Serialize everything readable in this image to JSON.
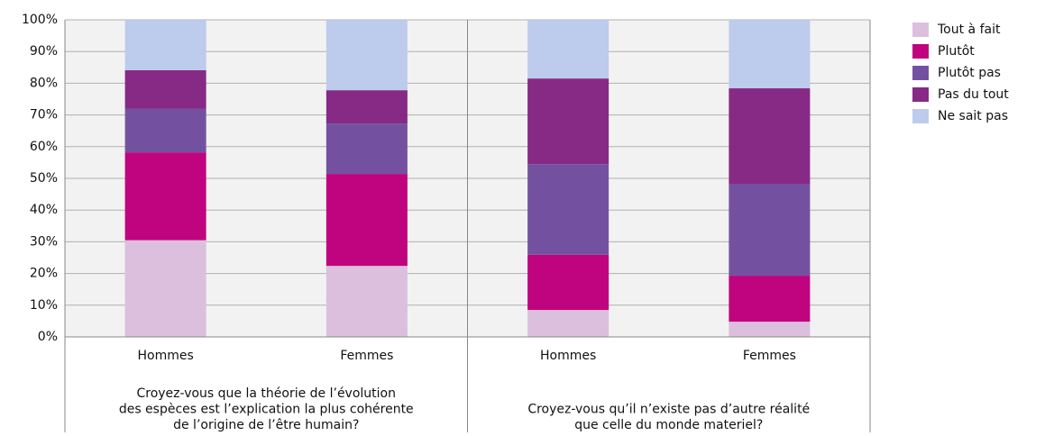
{
  "chart_data": {
    "type": "stacked_bar",
    "categories": [
      "Hommes",
      "Femmes",
      "Hommes",
      "Femmes"
    ],
    "groups": [
      {
        "lines": [
          "Croyez-vous que la théorie de l’évolution",
          "des espèces est l’explication la plus cohérente",
          "de l’origine de l’être humain?"
        ]
      },
      {
        "lines": [
          "Croyez-vous qu’il n’existe pas d’autre réalité",
          "que celle du monde materiel?"
        ]
      }
    ],
    "series": [
      {
        "name": "Tout à fait",
        "color": "#dcbfdd",
        "values": [
          30.5,
          22.4,
          8.5,
          4.8
        ]
      },
      {
        "name": "Plutôt",
        "color": "#c0037e",
        "values": [
          27.7,
          29.0,
          17.4,
          14.5
        ]
      },
      {
        "name": "Plutôt pas",
        "color": "#7451a0",
        "values": [
          13.7,
          15.9,
          28.6,
          29.0
        ]
      },
      {
        "name": "Pas du tout",
        "color": "#862a86",
        "values": [
          12.2,
          10.5,
          27.0,
          30.1
        ]
      },
      {
        "name": "Ne sait pas",
        "color": "#bdcbec",
        "values": [
          15.9,
          22.2,
          18.5,
          21.6
        ]
      }
    ],
    "ylim": [
      0,
      100
    ],
    "yticks": [
      {
        "value": 0,
        "label": "0%"
      },
      {
        "value": 10,
        "label": "10%"
      },
      {
        "value": 20,
        "label": "20%"
      },
      {
        "value": 30,
        "label": "30%"
      },
      {
        "value": 40,
        "label": "40%"
      },
      {
        "value": 50,
        "label": "50%"
      },
      {
        "value": 60,
        "label": "60%"
      },
      {
        "value": 70,
        "label": "70%"
      },
      {
        "value": 80,
        "label": "80%"
      },
      {
        "value": 90,
        "label": "90%"
      },
      {
        "value": 100,
        "label": "100%"
      }
    ],
    "grid": true
  }
}
